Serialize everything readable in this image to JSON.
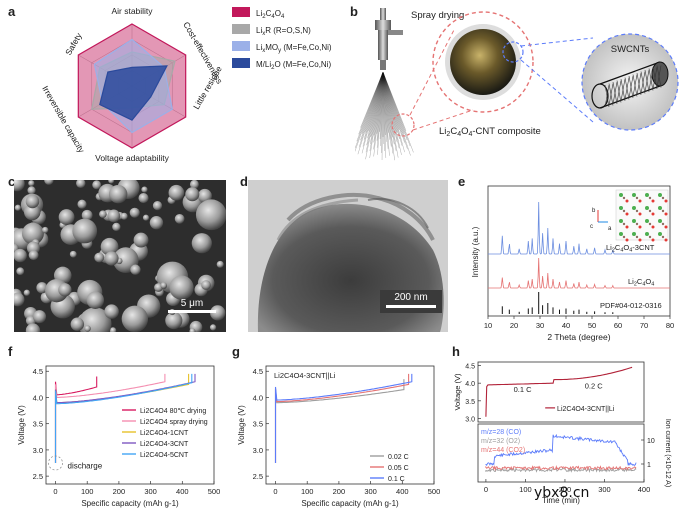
{
  "labels": {
    "a": "a",
    "b": "b",
    "c": "c",
    "d": "d",
    "e": "e",
    "f": "f",
    "g": "g",
    "h": "h"
  },
  "panel_a": {
    "axes": [
      "Air stability",
      "Cost-effectiveness",
      "Little residue",
      "Voltage adaptability",
      "Irreversible capacity",
      "Safety"
    ],
    "legend": [
      {
        "label": "Li2C4O4",
        "color": "#c2185b"
      },
      {
        "label": "LixR (R=O,S,N)",
        "color": "#a8a8a8"
      },
      {
        "label": "LixMOy (M=Fe,Co,Ni)",
        "color": "#9bb0e8"
      },
      {
        "label": "M/Li2O (M=Fe,Co,Ni)",
        "color": "#2b4a9c"
      }
    ],
    "series_values": [
      [
        1.0,
        1.0,
        1.0,
        1.0,
        1.0,
        1.0
      ],
      [
        0.55,
        0.8,
        0.6,
        0.35,
        0.75,
        0.6
      ],
      [
        0.75,
        0.6,
        0.75,
        0.75,
        0.55,
        0.7
      ],
      [
        0.3,
        0.65,
        0.35,
        0.55,
        0.6,
        0.45
      ]
    ]
  },
  "panel_b": {
    "spray_label": "Spray drying",
    "composite_label": "Li2C4O4-CNT composite",
    "swcnt_label": "SWCNTs"
  },
  "panel_c": {
    "scale": "5 μm"
  },
  "panel_d": {
    "scale": "200 nm"
  },
  "panel_e": {
    "xlabel": "2 Theta (degree)",
    "ylabel": "Intensity (a.u.)",
    "xticks": [
      10,
      20,
      30,
      40,
      50,
      60,
      70,
      80
    ],
    "traces": [
      "Li2C4O4-3CNT",
      "Li2C4O4",
      "PDF#04-012-0316"
    ],
    "crystal_axes": [
      "b",
      "c",
      "a"
    ]
  },
  "chart_data": [
    {
      "type": "line",
      "panel": "f",
      "xlabel": "Specific capacity (mAh g-1)",
      "ylabel": "Voltage (V)",
      "xlim": [
        -30,
        500
      ],
      "ylim": [
        2.35,
        4.6
      ],
      "xticks": [
        0,
        100,
        200,
        300,
        400,
        500
      ],
      "yticks": [
        2.5,
        3.0,
        3.5,
        4.0,
        4.5
      ],
      "annotation": "discharge",
      "series": [
        {
          "name": "Li2C4O4 80℃ drying",
          "color": "#d81b60",
          "capacity": 130,
          "plateau": [
            4.05,
            4.2
          ]
        },
        {
          "name": "Li2C4O4 spray drying",
          "color": "#f48fb1",
          "capacity": 345,
          "plateau": [
            4.0,
            4.3
          ]
        },
        {
          "name": "Li2C4O4-1CNT",
          "color": "#e6c229",
          "capacity": 420,
          "plateau": [
            3.9,
            4.25
          ]
        },
        {
          "name": "Li2C4O4-3CNT",
          "color": "#7e57c2",
          "capacity": 440,
          "plateau": [
            3.9,
            4.3
          ]
        },
        {
          "name": "Li2C4O4-5CNT",
          "color": "#42a5f5",
          "capacity": 430,
          "plateau": [
            3.88,
            4.28
          ]
        }
      ]
    },
    {
      "type": "line",
      "panel": "g",
      "title": "Li2C4O4-3CNT||Li",
      "xlabel": "Specific capacity (mAh g-1)",
      "ylabel": "Voltage (V)",
      "xlim": [
        -30,
        500
      ],
      "ylim": [
        2.35,
        4.6
      ],
      "xticks": [
        0,
        100,
        200,
        300,
        400,
        500
      ],
      "yticks": [
        2.5,
        3.0,
        3.5,
        4.0,
        4.5
      ],
      "series": [
        {
          "name": "0.02 C",
          "color": "#9e9e9e",
          "capacity": 405,
          "plateau": [
            3.9,
            4.15
          ]
        },
        {
          "name": "0.05 C",
          "color": "#e57373",
          "capacity": 420,
          "plateau": [
            3.92,
            4.25
          ]
        },
        {
          "name": "0.1 C",
          "color": "#5c7cfa",
          "capacity": 430,
          "plateau": [
            3.95,
            4.3
          ]
        }
      ]
    },
    {
      "type": "line",
      "panel": "h",
      "legend": "Li2C4O4-3CNT||Li",
      "xlabel": "Time (min)",
      "ylabel_top": "Voltage (V)",
      "ylabel_bottom": "Ion current (×10-12 A)",
      "xticks": [
        0,
        100,
        200,
        300,
        400
      ],
      "yticks_top": [
        3.0,
        3.5,
        4.0,
        4.5
      ],
      "yticks_bottom": [
        1,
        10
      ],
      "rate_labels": [
        "0.1 C",
        "0.2 C"
      ],
      "gas_series": [
        {
          "name": "m/z=28 (CO)",
          "color": "#5c7cfa"
        },
        {
          "name": "m/z=32 (O2)",
          "color": "#9e9e9e"
        },
        {
          "name": "m/z=44 (CO2)",
          "color": "#e57373"
        }
      ]
    }
  ],
  "watermark": "ybx8.cn"
}
